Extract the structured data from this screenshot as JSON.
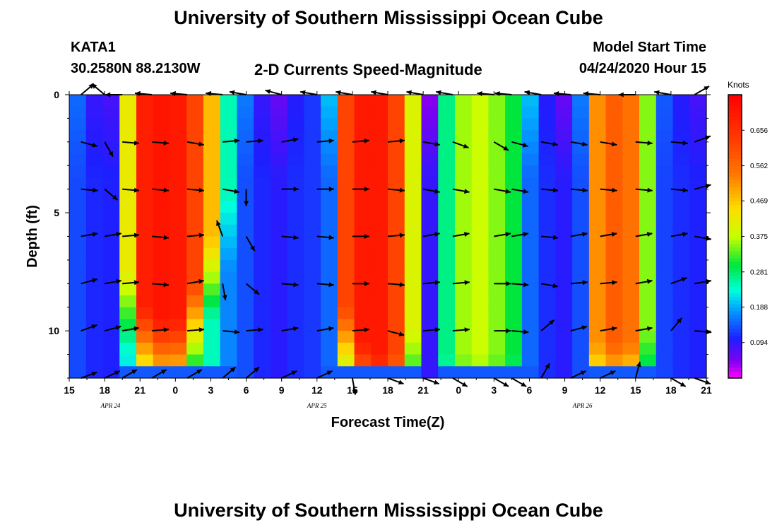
{
  "title_top": "University of Southern Mississippi Ocean Cube",
  "title_bottom": "University of Southern Mississippi Ocean Cube",
  "station": {
    "id": "KATA1",
    "coords": "30.2580N 88.2130W"
  },
  "model": {
    "label": "Model Start Time",
    "start": "04/24/2020 Hour 15"
  },
  "chart_data": {
    "type": "heatmap",
    "title": "2-D Currents Speed-Magnitude",
    "xlabel": "Forecast Time(Z)",
    "ylabel": "Depth (ft)",
    "units": "Knots",
    "x_tick_labels": [
      "15",
      "18",
      "21",
      "0",
      "3",
      "6",
      "9",
      "12",
      "15",
      "18",
      "21",
      "0",
      "3",
      "6",
      "9",
      "12",
      "15",
      "18",
      "21"
    ],
    "x_range_hours": [
      0,
      54
    ],
    "date_labels": [
      {
        "text": "APR 24",
        "hour": 3.5
      },
      {
        "text": "APR 25",
        "hour": 21
      },
      {
        "text": "APR 26",
        "hour": 43.5
      }
    ],
    "y_tick_labels": [
      {
        "text": "0",
        "value": 0
      },
      {
        "text": "5",
        "value": 5
      },
      {
        "text": "10",
        "value": 10
      }
    ],
    "y_range_ft": [
      0,
      12
    ],
    "colorbar": {
      "min": 0.0,
      "max": 0.75,
      "ticks": [
        "0.094",
        "0.188",
        "0.281",
        "0.375",
        "0.469",
        "0.562",
        "0.656"
      ]
    },
    "surface_speed_by_time_knots": [
      0.15,
      0.09,
      0.08,
      0.42,
      0.69,
      0.71,
      0.7,
      0.62,
      0.48,
      0.25,
      0.16,
      0.09,
      0.06,
      0.1,
      0.12,
      0.2,
      0.62,
      0.7,
      0.7,
      0.62,
      0.4,
      0.04,
      0.27,
      0.36,
      0.38,
      0.35,
      0.3,
      0.2,
      0.1,
      0.06,
      0.16,
      0.52,
      0.58,
      0.55,
      0.35,
      0.14,
      0.1,
      0.08
    ],
    "core_depth_ft_by_time": [
      0,
      0,
      0,
      7.5,
      9,
      9.5,
      9.5,
      8,
      6,
      4,
      0,
      0,
      0,
      0,
      0,
      0,
      9,
      10.5,
      11,
      11,
      10,
      0,
      11,
      11,
      11,
      11,
      11,
      0,
      0,
      0,
      0,
      10.5,
      10.5,
      10.5,
      10,
      0,
      0,
      0
    ],
    "arrow_depths_ft": [
      0,
      2,
      4,
      6,
      8,
      10,
      12
    ],
    "arrow_times_h": [
      1,
      3,
      4.5,
      7,
      10,
      13,
      15,
      18,
      21,
      24,
      27,
      30,
      32.5,
      36,
      37.5,
      40,
      42.5,
      45,
      48,
      51,
      53
    ],
    "arrow_directions_deg": [
      [
        -40,
        -140,
        180,
        -175,
        -175,
        -175,
        -170,
        -165,
        -170,
        -170,
        -170,
        -170,
        -170,
        -175,
        -175,
        -170,
        -175,
        -175,
        180,
        -170,
        -30
      ],
      [
        15,
        60,
        5,
        5,
        10,
        -5,
        -5,
        -10,
        -5,
        -5,
        -5,
        10,
        20,
        30,
        15,
        10,
        10,
        10,
        5,
        5,
        -20
      ],
      [
        5,
        40,
        5,
        5,
        5,
        10,
        90,
        0,
        0,
        0,
        5,
        10,
        10,
        10,
        10,
        5,
        5,
        5,
        5,
        5,
        -15
      ],
      [
        -10,
        -10,
        -5,
        5,
        -5,
        -110,
        60,
        5,
        5,
        0,
        -5,
        -10,
        -10,
        -10,
        -10,
        5,
        -10,
        -10,
        -10,
        -10,
        10
      ],
      [
        -15,
        -10,
        -5,
        5,
        -10,
        80,
        40,
        5,
        5,
        0,
        5,
        -5,
        -5,
        0,
        5,
        10,
        -5,
        -5,
        -10,
        -20,
        -10
      ],
      [
        -20,
        -15,
        -10,
        -5,
        -5,
        5,
        -5,
        -10,
        -10,
        -5,
        15,
        -5,
        -5,
        0,
        5,
        -40,
        -15,
        -10,
        -10,
        -50,
        5
      ],
      [
        -20,
        -25,
        -30,
        -30,
        -30,
        -40,
        -40,
        -25,
        -25,
        80,
        20,
        20,
        30,
        30,
        30,
        -60,
        -25,
        -25,
        -75,
        30,
        20
      ]
    ]
  }
}
